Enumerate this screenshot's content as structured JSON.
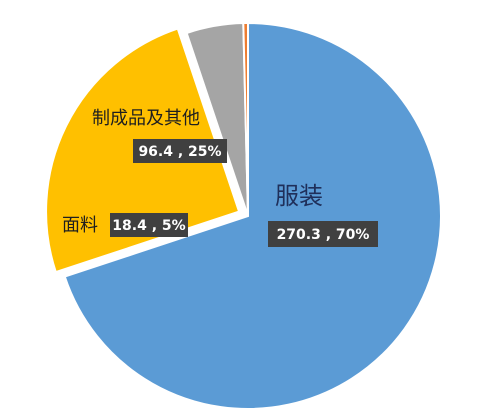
{
  "chart_data": {
    "type": "pie",
    "title": "",
    "slices": [
      {
        "label": "服装",
        "value": 270.3,
        "value_text": "270.3 , 70%",
        "color": "#5B9BD5",
        "pct": 70
      },
      {
        "label": "制成品及其他",
        "value": 96.4,
        "value_text": "96.4 , 25%",
        "color": "#FFC000",
        "pct": 25
      },
      {
        "label": "面料",
        "value": 18.4,
        "value_text": "18.4 , 5%",
        "color": "#A5A5A5",
        "pct": 5
      },
      {
        "label": "",
        "value": 1.5,
        "value_text": "",
        "color": "#ED7D31",
        "pct": 0.4
      }
    ],
    "exploded_slice": "制成品及其他",
    "label_box_color": "#404040",
    "legend": "none"
  }
}
